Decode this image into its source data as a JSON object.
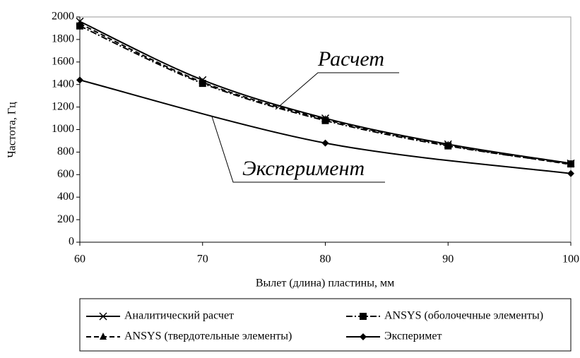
{
  "chart_data": {
    "type": "line",
    "xlabel": "Вылет (длина) пластины, мм",
    "ylabel": "Частота, Гц",
    "xlim": [
      60,
      100
    ],
    "xticks": [
      60,
      70,
      80,
      90,
      100
    ],
    "ylim": [
      0,
      2000
    ],
    "yticks": [
      0,
      200,
      400,
      600,
      800,
      1000,
      1200,
      1400,
      1600,
      1800,
      2000
    ],
    "series": [
      {
        "name": "Аналитический расчет",
        "color": "#000000",
        "line_style": "solid",
        "marker": "x",
        "x": [
          60,
          70,
          80,
          90,
          100
        ],
        "values": [
          1960,
          1440,
          1100,
          870,
          700
        ]
      },
      {
        "name": "ANSYS (оболочечные элементы)",
        "color": "#000000",
        "line_style": "dashdot",
        "marker": "square",
        "x": [
          60,
          70,
          80,
          90,
          100
        ],
        "values": [
          1920,
          1410,
          1080,
          855,
          695
        ]
      },
      {
        "name": "ANSYS (твердотельные элементы)",
        "color": "#000000",
        "line_style": "dashed",
        "marker": "triangle",
        "x": [
          60,
          70,
          80,
          90,
          100
        ],
        "values": [
          1940,
          1420,
          1090,
          862,
          690
        ]
      },
      {
        "name": "Эксперимет",
        "color": "#000000",
        "line_style": "solid",
        "marker": "diamond",
        "x": [
          60,
          80,
          100
        ],
        "values": [
          1440,
          880,
          610
        ]
      }
    ],
    "annotations": [
      "Расчет",
      "Эксперимент"
    ],
    "legend": "bottom"
  }
}
